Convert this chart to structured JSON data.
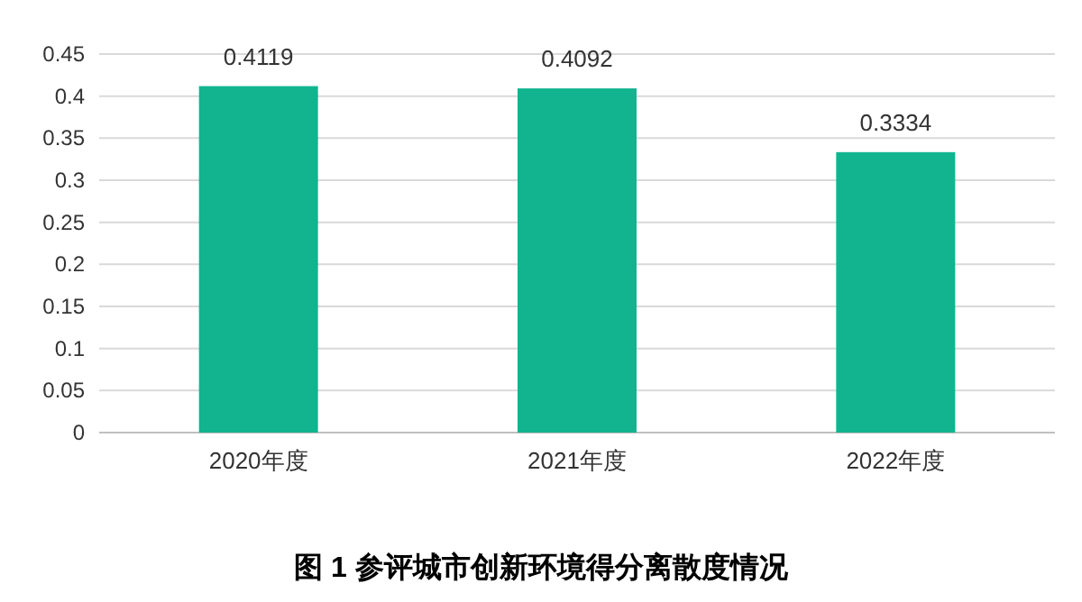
{
  "chart_data": {
    "type": "bar",
    "title": "图 1  参评城市创新环境得分离散度情况",
    "categories": [
      "2020年度",
      "2021年度",
      "2022年度"
    ],
    "values": [
      0.4119,
      0.4092,
      0.3334
    ],
    "color": "#12b48f",
    "ylim": [
      0,
      0.45
    ],
    "yticks": [
      0,
      0.05,
      0.1,
      0.15,
      0.2,
      0.25,
      0.3,
      0.35,
      0.4,
      0.45
    ],
    "grid": "y",
    "data_labels": true
  }
}
